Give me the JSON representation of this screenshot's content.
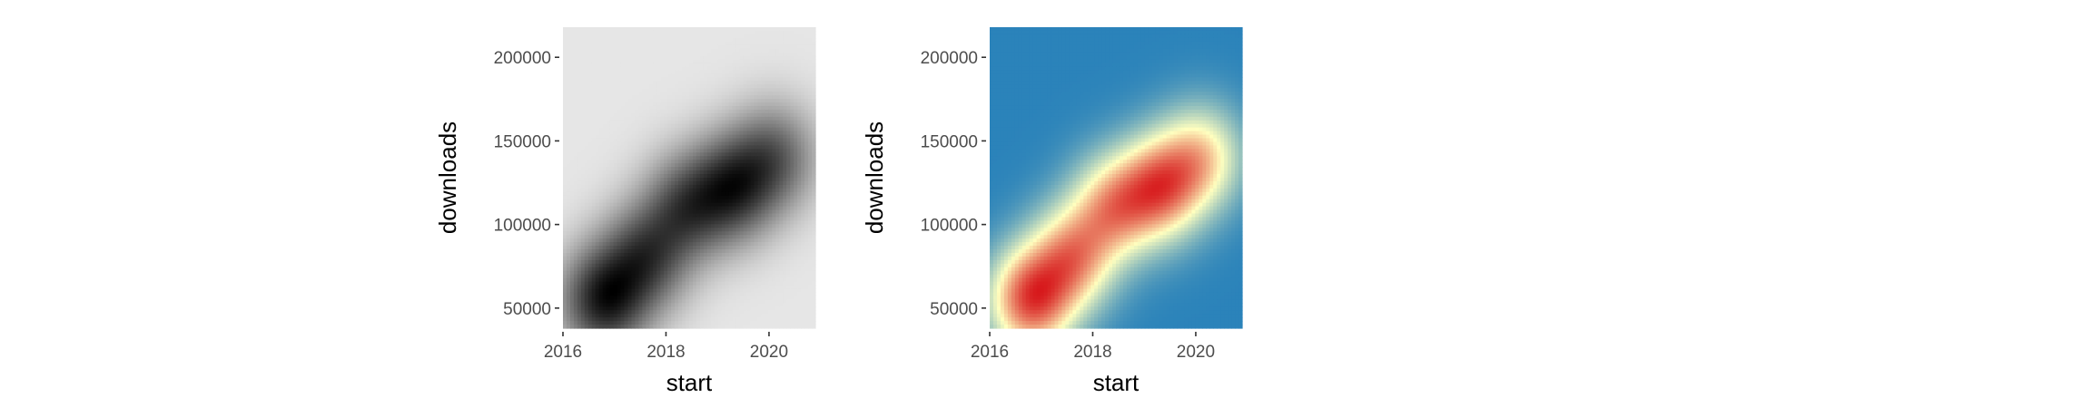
{
  "chart_data": [
    {
      "type": "heatmap",
      "palette": "grayscale",
      "colors": [
        "#e6e6e6",
        "#000000"
      ],
      "xlabel": "start",
      "ylabel": "downloads",
      "xlim": [
        2016,
        2020.9
      ],
      "ylim": [
        38000,
        218000
      ],
      "xticks": [
        2016,
        2018,
        2020
      ],
      "xtick_labels": [
        "2016",
        "2018",
        "2020"
      ],
      "yticks": [
        50000,
        100000,
        150000,
        200000
      ],
      "ytick_labels": [
        "50000",
        "100000",
        "150000",
        "200000"
      ],
      "density_peaks": [
        {
          "x": 2016.8,
          "y": 55000,
          "weight": 1.0
        },
        {
          "x": 2017.6,
          "y": 80000,
          "weight": 0.75
        },
        {
          "x": 2018.4,
          "y": 110000,
          "weight": 0.7
        },
        {
          "x": 2019.3,
          "y": 122000,
          "weight": 0.85
        },
        {
          "x": 2020.1,
          "y": 140000,
          "weight": 0.6
        }
      ]
    },
    {
      "type": "heatmap",
      "palette": "blue-yellow-red",
      "colors": [
        "#2b83ba",
        "#ffffbf",
        "#d7191c"
      ],
      "xlabel": "start",
      "ylabel": "downloads",
      "xlim": [
        2016,
        2020.9
      ],
      "ylim": [
        38000,
        218000
      ],
      "xticks": [
        2016,
        2018,
        2020
      ],
      "xtick_labels": [
        "2016",
        "2018",
        "2020"
      ],
      "yticks": [
        50000,
        100000,
        150000,
        200000
      ],
      "ytick_labels": [
        "50000",
        "100000",
        "150000",
        "200000"
      ],
      "density_peaks": [
        {
          "x": 2016.8,
          "y": 55000,
          "weight": 1.0
        },
        {
          "x": 2017.6,
          "y": 80000,
          "weight": 0.75
        },
        {
          "x": 2018.4,
          "y": 110000,
          "weight": 0.7
        },
        {
          "x": 2019.3,
          "y": 122000,
          "weight": 0.85
        },
        {
          "x": 2020.1,
          "y": 140000,
          "weight": 0.6
        }
      ]
    }
  ]
}
